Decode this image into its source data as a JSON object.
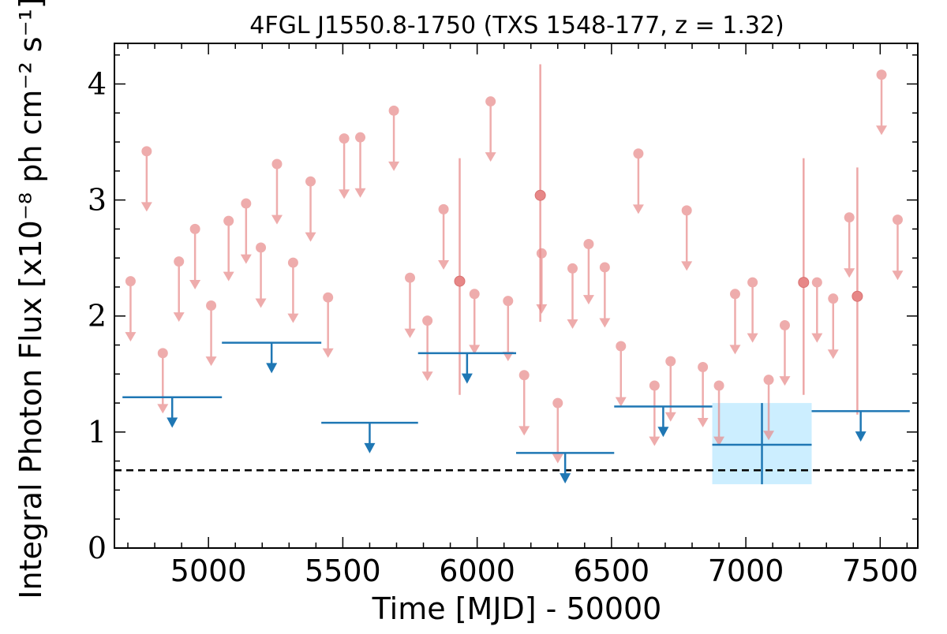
{
  "chart_data": {
    "type": "scatter",
    "title": "4FGL J1550.8-1750 (TXS 1548-177, z = 1.32)",
    "xlabel": "Time [MJD] - 50000",
    "ylabel": "Integral Photon Flux [x10⁻⁸ ph cm⁻² s⁻¹]",
    "xlim": [
      4650,
      7640
    ],
    "ylim": [
      0,
      4.35
    ],
    "x_ticks": [
      5000,
      5500,
      6000,
      6500,
      7000,
      7500
    ],
    "x_tick_labels": [
      "5000",
      "5500",
      "6000",
      "6500",
      "7000",
      "7500"
    ],
    "y_ticks": [
      0,
      1,
      2,
      3,
      4
    ],
    "y_tick_labels": [
      "0",
      "1",
      "2",
      "3",
      "4"
    ],
    "grid": false,
    "colors": {
      "short_bins": "#e88a8a",
      "long_bins": "#1f77b4",
      "band": "#cceeff",
      "reference_line": "#000000"
    },
    "reference_line_y": 0.67,
    "series": [
      {
        "role": "short-bin upper limits",
        "x": [
          4710,
          4770,
          4830,
          4890,
          4950,
          5010,
          5075,
          5140,
          5195,
          5255,
          5315,
          5380,
          5445,
          5505,
          5565,
          5690,
          5750,
          5815,
          5875,
          5990,
          6050,
          6115,
          6175,
          6240,
          6300,
          6355,
          6415,
          6475,
          6535,
          6600,
          6660,
          6720,
          6780,
          6840,
          6900,
          6960,
          7025,
          7085,
          7145,
          7265,
          7325,
          7385,
          7505,
          7565
        ],
        "upper_limits": [
          2.3,
          3.42,
          1.68,
          2.47,
          2.75,
          2.09,
          2.82,
          2.97,
          2.59,
          3.31,
          2.46,
          3.16,
          2.16,
          3.53,
          3.54,
          3.77,
          2.33,
          1.96,
          2.92,
          2.19,
          3.85,
          2.13,
          1.49,
          2.54,
          1.25,
          2.41,
          2.62,
          2.42,
          1.74,
          3.4,
          1.4,
          1.61,
          2.91,
          1.56,
          1.4,
          2.19,
          2.29,
          1.45,
          1.92,
          2.29,
          2.15,
          2.85,
          4.08,
          2.83
        ]
      },
      {
        "role": "short-bin detections",
        "x": [
          6235,
          5935,
          7215,
          7415
        ],
        "y": [
          3.04,
          2.3,
          2.29,
          2.17
        ]
      },
      {
        "role": "long-bin upper limits",
        "x_start": [
          4680,
          5050,
          5420,
          5780,
          6145,
          6510,
          7245
        ],
        "x_end": [
          5050,
          5420,
          5780,
          6145,
          6510,
          6875,
          7610
        ],
        "upper_limits": [
          1.3,
          1.77,
          1.08,
          1.68,
          0.82,
          1.22,
          1.18
        ]
      },
      {
        "role": "long-bin detection",
        "x": 7060,
        "x_start": 6875,
        "x_end": 7245,
        "y": 0.89,
        "y_low": 0.55,
        "y_high": 1.25
      }
    ]
  }
}
